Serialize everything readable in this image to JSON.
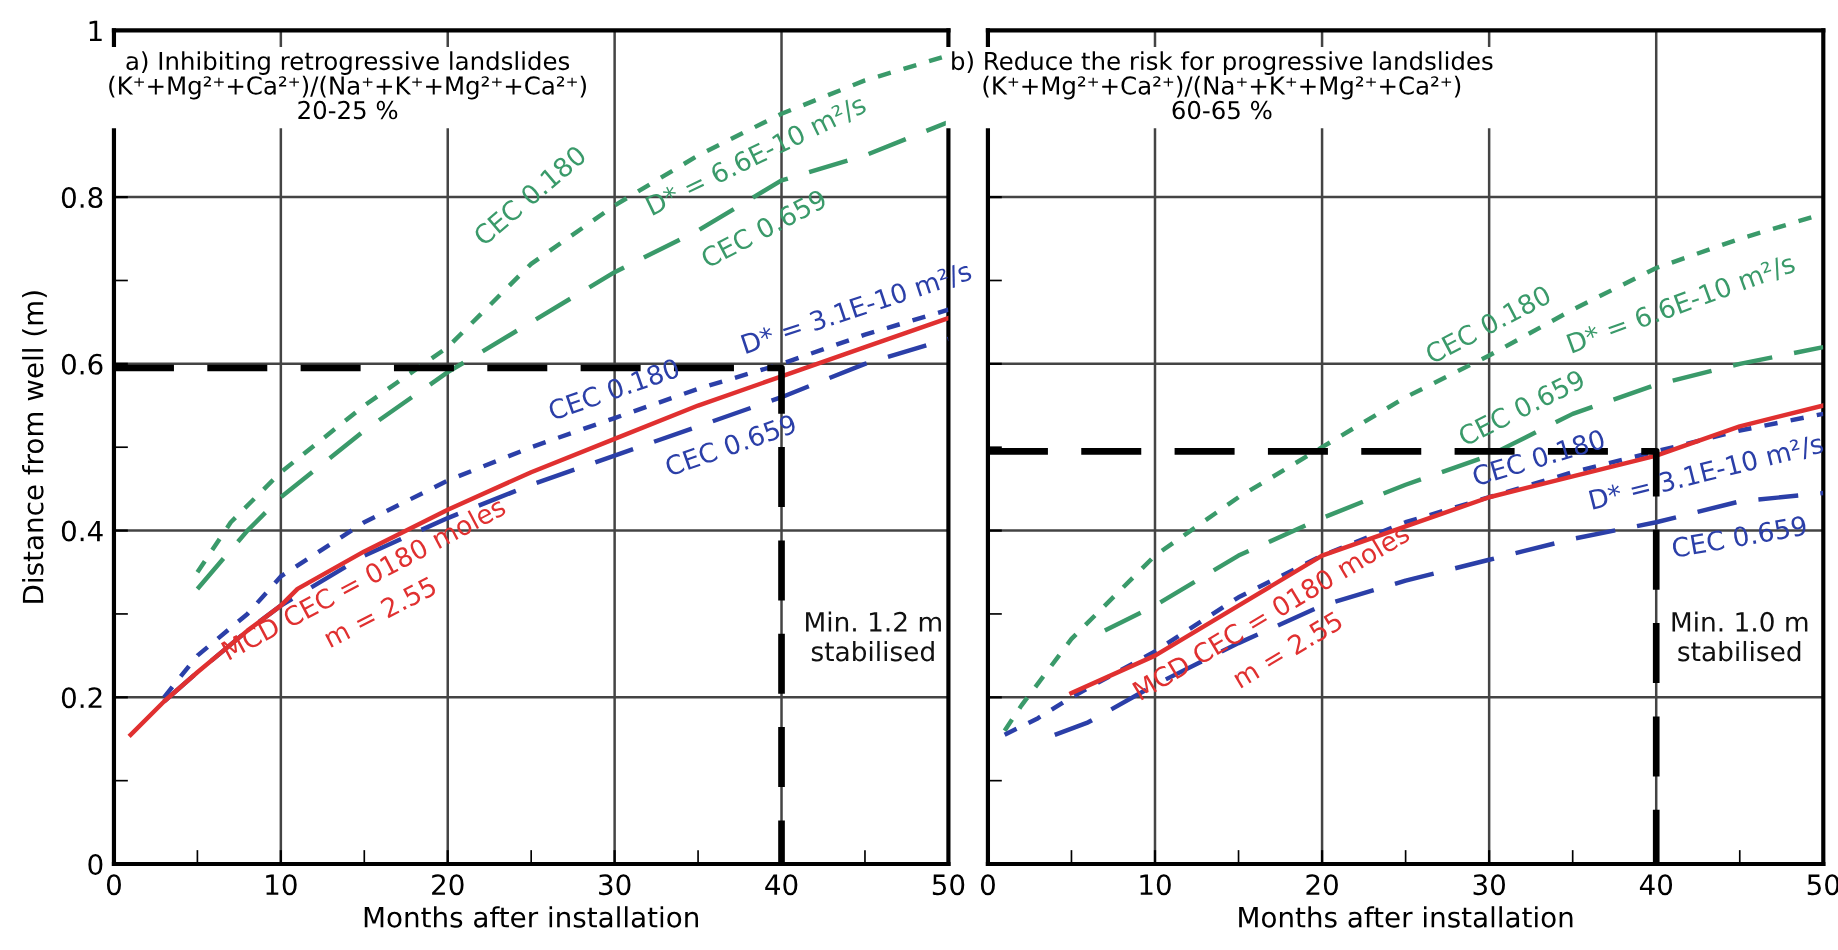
{
  "chart_data": [
    {
      "type": "line",
      "title": "a) Inhibiting retrogressive landslides",
      "subtitle": "(K⁺+Mg²⁺+Ca²⁺)/(Na⁺+K⁺+Mg²⁺+Ca²⁺)\n20-25 %",
      "xlabel": "Months after installation",
      "ylabel": "Distance from well (m)",
      "xlim": [
        0,
        50
      ],
      "ylim": [
        0,
        1
      ],
      "xticks": [
        0,
        {
          "value": 5,
          "label": null
        },
        10,
        {
          "value": 15,
          "label": null
        },
        20,
        {
          "value": 25,
          "label": null
        },
        30,
        {
          "value": 35,
          "label": null
        },
        40,
        {
          "value": 45,
          "label": null
        },
        50
      ],
      "yticks": [
        0,
        {
          "value": 0.1,
          "label": null
        },
        0.2,
        {
          "value": 0.3,
          "label": null
        },
        0.4,
        {
          "value": 0.5,
          "label": null
        },
        0.6,
        {
          "value": 0.7,
          "label": null
        },
        0.8,
        {
          "value": 0.9,
          "label": null
        },
        1
      ],
      "grid": true,
      "series": [
        {
          "color": "#3a9a6a",
          "line_style": "dotted",
          "x": [
            5,
            7,
            10,
            15,
            20,
            25,
            30,
            35,
            40,
            45,
            50
          ],
          "values": [
            0.35,
            0.41,
            0.47,
            0.55,
            0.62,
            0.72,
            0.79,
            0.85,
            0.9,
            0.94,
            0.97
          ]
        },
        {
          "color": "#3a9a6a",
          "line_style": "dashed",
          "x": [
            5,
            8,
            10,
            15,
            20,
            25,
            30,
            35,
            40,
            45,
            50
          ],
          "values": [
            0.33,
            0.4,
            0.44,
            0.52,
            0.59,
            0.65,
            0.71,
            0.76,
            0.82,
            0.85,
            0.89
          ]
        },
        {
          "color": "#2b3fa8",
          "line_style": "dotted",
          "x": [
            3,
            5,
            8,
            10,
            15,
            20,
            25,
            30,
            35,
            40,
            45,
            50
          ],
          "values": [
            0.2,
            0.25,
            0.3,
            0.345,
            0.41,
            0.46,
            0.5,
            0.535,
            0.57,
            0.6,
            0.635,
            0.665
          ]
        },
        {
          "color": "#2b3fa8",
          "line_style": "dashed",
          "x": [
            3,
            5,
            8,
            10,
            15,
            20,
            25,
            30,
            35,
            40,
            45,
            50
          ],
          "values": [
            0.195,
            0.23,
            0.28,
            0.31,
            0.37,
            0.415,
            0.455,
            0.49,
            0.525,
            0.56,
            0.6,
            0.63
          ]
        },
        {
          "color": "#e03030",
          "line_style": "solid",
          "x": [
            1,
            3,
            5,
            8,
            10,
            11,
            15,
            20,
            25,
            30,
            35,
            40,
            45,
            50
          ],
          "values": [
            0.155,
            0.195,
            0.23,
            0.28,
            0.31,
            0.33,
            0.375,
            0.425,
            0.47,
            0.51,
            0.55,
            0.585,
            0.62,
            0.655
          ]
        },
        {
          "color": "#000000",
          "line_style": "dashed",
          "x": [
            0,
            40,
            40
          ],
          "values": [
            0.595,
            0.595,
            0
          ]
        }
      ],
      "annotations": [
        "CEC 0.180",
        "D* = 6.6E-10 m²/s",
        "CEC 0.659",
        "CEC 0.180",
        "D* = 3.1E-10 m²/s",
        "CEC 0.659",
        "MCD CEC = 0180 moles",
        "m = 2.55",
        "Min. 1.2 m\nstabilised"
      ]
    },
    {
      "type": "line",
      "title": "b) Reduce the risk for progressive landslides",
      "subtitle": "(K⁺+Mg²⁺+Ca²⁺)/(Na⁺+K⁺+Mg²⁺+Ca²⁺)\n60-65 %",
      "xlabel": "Months after installation",
      "xlim": [
        0,
        50
      ],
      "ylim": [
        0,
        1
      ],
      "tick_labels": "x",
      "xticks": [
        0,
        {
          "value": 5,
          "label": null
        },
        10,
        {
          "value": 15,
          "label": null
        },
        20,
        {
          "value": 25,
          "label": null
        },
        30,
        {
          "value": 35,
          "label": null
        },
        40,
        {
          "value": 45,
          "label": null
        },
        50
      ],
      "yticks": [
        0,
        {
          "value": 0.1,
          "label": null
        },
        0.2,
        {
          "value": 0.3,
          "label": null
        },
        0.4,
        {
          "value": 0.5,
          "label": null
        },
        0.6,
        {
          "value": 0.7,
          "label": null
        },
        0.8,
        {
          "value": 0.9,
          "label": null
        },
        1
      ],
      "grid": true,
      "series": [
        {
          "color": "#3a9a6a",
          "line_style": "dotted",
          "x": [
            1,
            2,
            5,
            10,
            15,
            20,
            25,
            30,
            35,
            40,
            45,
            50
          ],
          "values": [
            0.16,
            0.19,
            0.27,
            0.37,
            0.44,
            0.5,
            0.56,
            0.61,
            0.665,
            0.715,
            0.75,
            0.78
          ]
        },
        {
          "color": "#3a9a6a",
          "line_style": "dashed",
          "x": [
            7,
            10,
            15,
            20,
            25,
            30,
            35,
            40,
            45,
            50
          ],
          "values": [
            0.28,
            0.31,
            0.37,
            0.415,
            0.455,
            0.49,
            0.54,
            0.575,
            0.6,
            0.62
          ]
        },
        {
          "color": "#2b3fa8",
          "line_style": "dotted",
          "x": [
            1,
            3,
            5,
            10,
            15,
            20,
            25,
            30,
            35,
            40,
            45,
            50
          ],
          "values": [
            0.155,
            0.175,
            0.2,
            0.255,
            0.32,
            0.37,
            0.41,
            0.44,
            0.47,
            0.495,
            0.52,
            0.54
          ]
        },
        {
          "color": "#2b3fa8",
          "line_style": "dashed",
          "x": [
            4,
            6,
            10,
            15,
            20,
            25,
            30,
            35,
            40,
            45,
            50
          ],
          "values": [
            0.155,
            0.17,
            0.215,
            0.265,
            0.31,
            0.34,
            0.365,
            0.39,
            0.41,
            0.435,
            0.445
          ]
        },
        {
          "color": "#e03030",
          "line_style": "solid",
          "x": [
            5,
            10,
            15,
            20,
            25,
            30,
            35,
            40,
            45,
            50
          ],
          "values": [
            0.205,
            0.25,
            0.31,
            0.37,
            0.405,
            0.44,
            0.465,
            0.49,
            0.525,
            0.55
          ]
        },
        {
          "color": "#000000",
          "line_style": "dashed",
          "x": [
            0,
            40,
            40
          ],
          "values": [
            0.495,
            0.495,
            0
          ]
        }
      ],
      "annotations": [
        "CEC 0.180",
        "D* = 6.6E-10 m²/s",
        "CEC 0.659",
        "CEC 0.180",
        "D* = 3.1E-10 m²/s",
        "CEC 0.659",
        "MCD CEC = 0180 moles",
        "m = 2.55",
        "Min. 1.0 m\nstabilised"
      ]
    }
  ]
}
